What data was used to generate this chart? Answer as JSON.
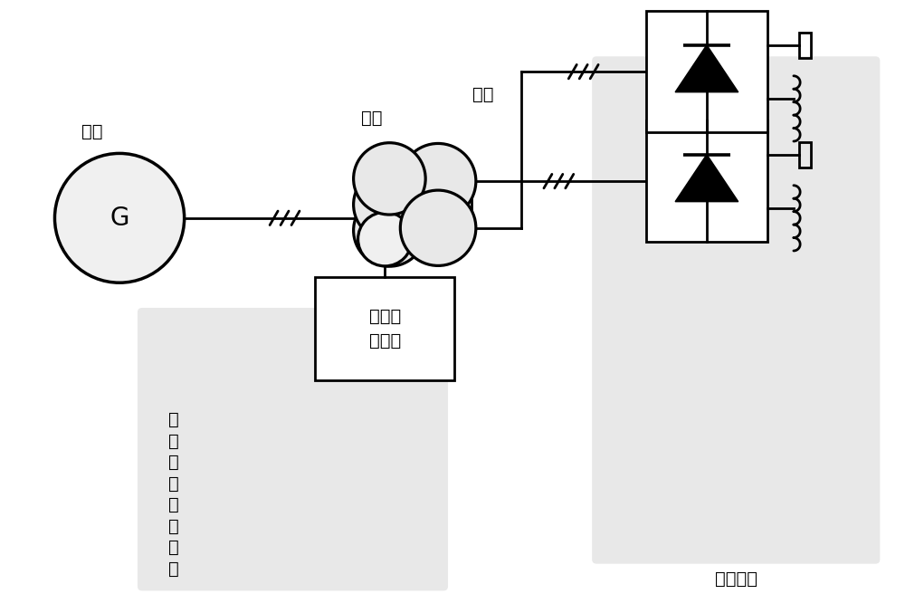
{
  "bg_color": "#ffffff",
  "box_bg": "#e8e8e8",
  "line_color": "#000000",
  "line_width": 2.0,
  "label_dianwang": "电网",
  "label_yuanbian": "原边",
  "label_fubian": "副边",
  "label_gen": "G",
  "label_active": "有源补\n偿装置",
  "label_common": "常\n用\n集\n中\n补\n偿\n方\n法",
  "label_rectifier": "整流负载",
  "fig_w": 10.0,
  "fig_h": 6.77
}
